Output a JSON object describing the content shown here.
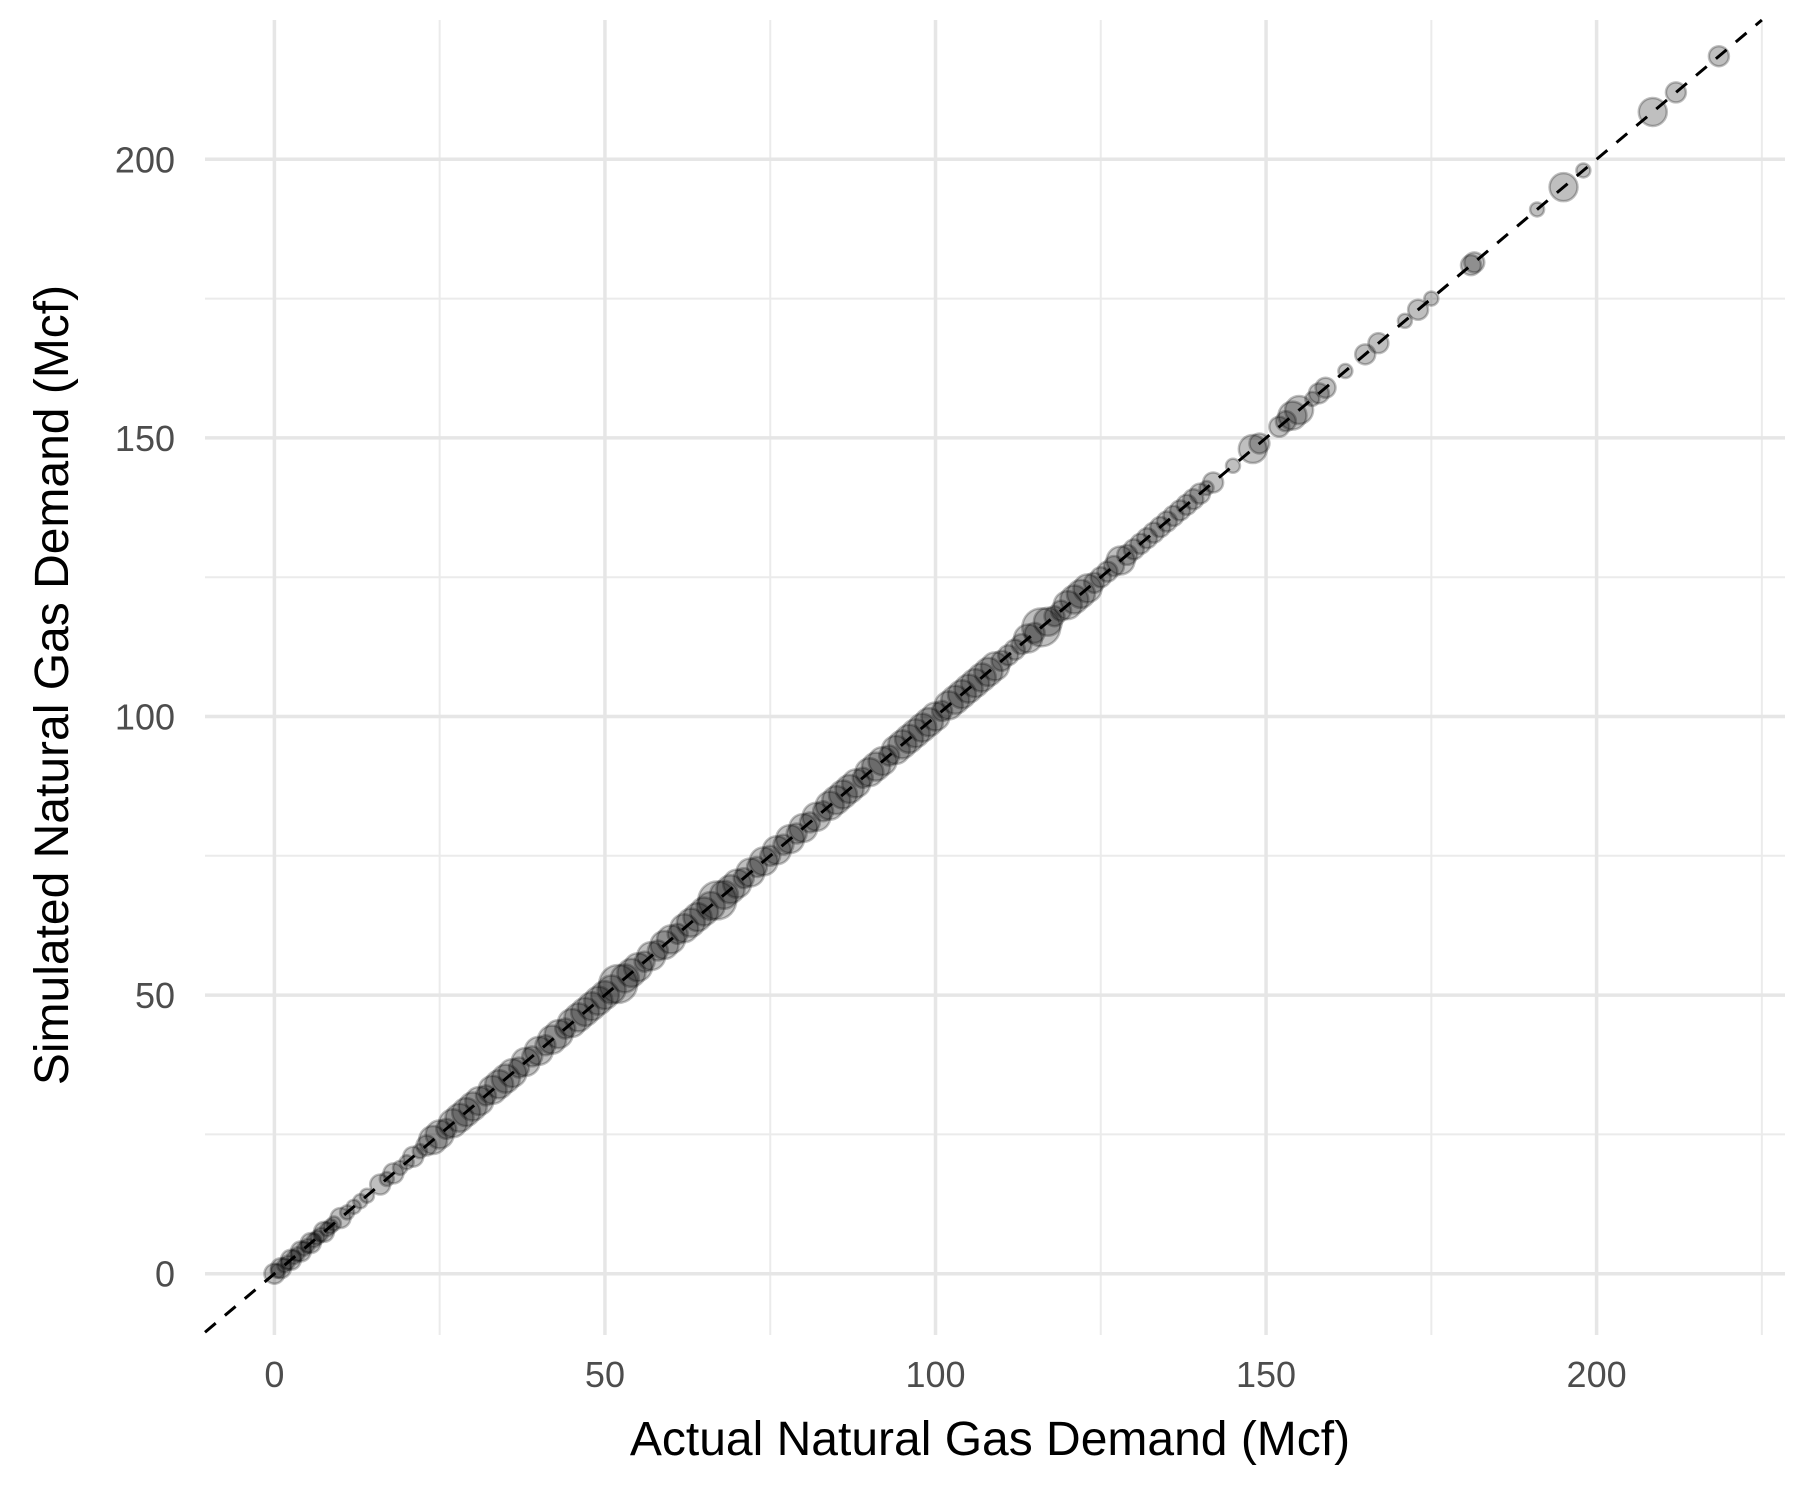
{
  "chart_data": {
    "type": "scatter",
    "title": "",
    "xlabel": "Actual Natural Gas Demand (Mcf)",
    "ylabel": "Simulated Natural Gas Demand (Mcf)",
    "xlim": [
      -10.5,
      228.5
    ],
    "ylim": [
      -11,
      225
    ],
    "x_ticks": [
      0,
      50,
      100,
      150,
      200
    ],
    "y_ticks": [
      0,
      50,
      100,
      150,
      200
    ],
    "x_minor_ticks": [
      25,
      75,
      125,
      175,
      225
    ],
    "y_minor_ticks": [
      25,
      75,
      125,
      175
    ],
    "grid": true,
    "reference_line": {
      "slope": 1,
      "intercept": 0,
      "style": "dashed",
      "color": "#000000"
    },
    "point_color": "#000000",
    "point_opacity": 0.25,
    "points": [
      [
        0,
        0,
        2
      ],
      [
        0.5,
        0.5,
        1
      ],
      [
        1,
        1,
        2
      ],
      [
        1.5,
        1.5,
        1
      ],
      [
        2,
        2,
        1
      ],
      [
        2.5,
        2.5,
        2
      ],
      [
        3,
        3,
        1
      ],
      [
        3.5,
        3.5,
        1
      ],
      [
        4,
        4,
        2
      ],
      [
        4.5,
        4.5,
        1
      ],
      [
        5,
        5,
        1
      ],
      [
        5.5,
        5.5,
        2
      ],
      [
        6,
        6,
        1
      ],
      [
        6.5,
        6.5,
        1
      ],
      [
        7,
        7,
        1
      ],
      [
        7.5,
        7.5,
        2
      ],
      [
        8,
        8,
        1
      ],
      [
        8.5,
        8.5,
        1
      ],
      [
        9,
        9,
        1
      ],
      [
        10,
        10,
        2
      ],
      [
        11,
        11,
        1
      ],
      [
        12,
        12,
        1
      ],
      [
        13,
        13,
        1
      ],
      [
        14,
        14,
        1
      ],
      [
        16,
        16,
        2
      ],
      [
        17,
        17,
        1
      ],
      [
        18,
        18,
        2
      ],
      [
        19,
        19,
        1
      ],
      [
        20,
        20,
        1
      ],
      [
        21,
        21,
        2
      ],
      [
        22,
        22,
        1
      ],
      [
        23,
        23,
        2
      ],
      [
        24,
        24,
        3
      ],
      [
        25,
        25,
        3
      ],
      [
        26,
        26,
        2
      ],
      [
        27,
        27,
        3
      ],
      [
        28,
        28,
        3
      ],
      [
        29,
        29,
        3
      ],
      [
        30,
        30,
        3
      ],
      [
        31,
        31,
        3
      ],
      [
        32,
        32,
        2
      ],
      [
        33,
        33,
        3
      ],
      [
        34,
        34,
        3
      ],
      [
        35,
        35,
        3
      ],
      [
        36,
        36,
        3
      ],
      [
        37,
        37,
        2
      ],
      [
        38,
        38,
        3
      ],
      [
        39,
        39,
        2
      ],
      [
        40,
        40,
        3
      ],
      [
        41,
        41,
        2
      ],
      [
        42,
        42,
        3
      ],
      [
        43,
        43,
        3
      ],
      [
        44,
        44,
        2
      ],
      [
        45,
        45,
        3
      ],
      [
        46,
        46,
        3
      ],
      [
        47,
        47,
        3
      ],
      [
        48,
        48,
        3
      ],
      [
        49,
        49,
        3
      ],
      [
        50,
        50,
        3
      ],
      [
        51,
        51,
        3
      ],
      [
        52,
        52,
        4
      ],
      [
        53,
        53,
        3
      ],
      [
        54,
        54,
        3
      ],
      [
        55,
        55,
        3
      ],
      [
        56,
        56,
        2
      ],
      [
        57,
        57,
        3
      ],
      [
        58,
        58,
        2
      ],
      [
        59,
        59,
        3
      ],
      [
        60,
        60,
        3
      ],
      [
        61,
        61,
        2
      ],
      [
        62,
        62,
        3
      ],
      [
        63,
        63,
        3
      ],
      [
        64,
        64,
        3
      ],
      [
        65,
        65,
        3
      ],
      [
        66,
        66,
        3
      ],
      [
        67,
        67,
        4
      ],
      [
        68,
        68,
        3
      ],
      [
        69,
        69,
        3
      ],
      [
        70,
        70,
        3
      ],
      [
        71,
        71,
        2
      ],
      [
        72,
        72,
        3
      ],
      [
        73,
        73,
        2
      ],
      [
        74,
        74,
        3
      ],
      [
        75,
        75,
        2
      ],
      [
        76,
        76,
        3
      ],
      [
        77,
        77,
        2
      ],
      [
        78,
        78,
        3
      ],
      [
        79,
        79,
        2
      ],
      [
        80,
        80,
        3
      ],
      [
        81,
        81,
        2
      ],
      [
        82,
        82,
        3
      ],
      [
        83,
        83,
        2
      ],
      [
        84,
        84,
        3
      ],
      [
        85,
        85,
        3
      ],
      [
        86,
        86,
        3
      ],
      [
        87,
        87,
        3
      ],
      [
        88,
        88,
        3
      ],
      [
        89,
        89,
        2
      ],
      [
        90,
        90,
        3
      ],
      [
        91,
        91,
        3
      ],
      [
        92,
        92,
        3
      ],
      [
        93,
        93,
        2
      ],
      [
        94,
        94,
        3
      ],
      [
        95,
        95,
        3
      ],
      [
        96,
        96,
        3
      ],
      [
        97,
        97,
        3
      ],
      [
        98,
        98,
        3
      ],
      [
        99,
        99,
        3
      ],
      [
        100,
        100,
        3
      ],
      [
        101,
        101,
        2
      ],
      [
        102,
        102,
        3
      ],
      [
        103,
        103,
        3
      ],
      [
        104,
        104,
        3
      ],
      [
        105,
        105,
        3
      ],
      [
        106,
        106,
        3
      ],
      [
        107,
        107,
        3
      ],
      [
        108,
        108,
        3
      ],
      [
        109,
        109,
        3
      ],
      [
        110,
        110,
        2
      ],
      [
        111,
        111,
        2
      ],
      [
        112,
        112,
        2
      ],
      [
        113,
        113,
        2
      ],
      [
        114,
        114,
        3
      ],
      [
        115,
        115,
        2
      ],
      [
        116,
        116,
        4
      ],
      [
        117,
        117,
        3
      ],
      [
        118,
        118,
        2
      ],
      [
        119,
        119,
        2
      ],
      [
        120,
        120,
        3
      ],
      [
        121,
        121,
        3
      ],
      [
        122,
        122,
        3
      ],
      [
        123,
        123,
        3
      ],
      [
        124,
        124,
        2
      ],
      [
        125,
        125,
        2
      ],
      [
        126,
        126,
        2
      ],
      [
        127,
        127,
        2
      ],
      [
        128,
        128,
        3
      ],
      [
        129,
        129,
        2
      ],
      [
        130,
        130,
        2
      ],
      [
        131,
        131,
        2
      ],
      [
        132,
        132,
        2
      ],
      [
        133,
        133,
        2
      ],
      [
        134,
        134,
        2
      ],
      [
        135,
        135,
        2
      ],
      [
        136,
        136,
        2
      ],
      [
        137,
        137,
        2
      ],
      [
        138,
        138,
        2
      ],
      [
        139,
        139,
        2
      ],
      [
        140,
        140,
        2
      ],
      [
        141,
        141,
        1
      ],
      [
        142,
        142,
        2
      ],
      [
        145,
        145,
        1
      ],
      [
        148,
        148,
        3
      ],
      [
        149,
        149,
        2
      ],
      [
        152,
        152,
        2
      ],
      [
        153,
        153,
        2
      ],
      [
        154,
        154,
        3
      ],
      [
        155,
        155,
        3
      ],
      [
        157,
        157,
        1
      ],
      [
        158,
        158,
        2
      ],
      [
        159,
        159,
        2
      ],
      [
        162,
        162,
        1
      ],
      [
        165,
        165,
        2
      ],
      [
        167,
        167,
        2
      ],
      [
        171,
        171,
        1
      ],
      [
        173,
        173,
        2
      ],
      [
        175,
        175,
        1
      ],
      [
        181,
        181,
        2
      ],
      [
        181.5,
        181.5,
        2
      ],
      [
        191,
        191,
        1
      ],
      [
        195,
        195,
        3
      ],
      [
        198,
        198,
        1
      ],
      [
        208.5,
        208.5,
        3
      ],
      [
        212,
        212,
        2
      ],
      [
        218.5,
        218.5,
        2
      ]
    ],
    "size_scale": {
      "1": 7,
      "2": 10,
      "3": 14,
      "4": 19
    }
  }
}
